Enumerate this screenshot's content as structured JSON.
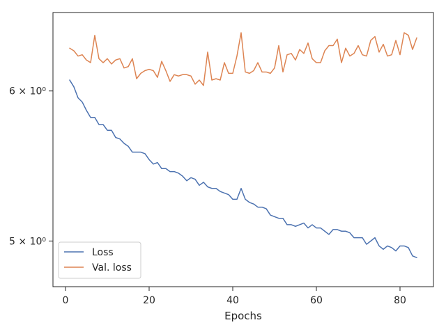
{
  "chart_data": {
    "type": "line",
    "xlabel": "Epochs",
    "ylabel": "",
    "yscale": "log",
    "xlim": [
      -3,
      88
    ],
    "ylim": [
      4.73,
      6.6
    ],
    "xticks": [
      0,
      20,
      40,
      60,
      80
    ],
    "yticks": [
      5.0,
      6.0
    ],
    "ytick_labels": [
      "5 × 10⁰",
      "6 × 10⁰"
    ],
    "legend_position": "lower-left",
    "grid": false,
    "colors": {
      "loss": "#4c72b0",
      "val_loss": "#dd8452",
      "axis": "#262626"
    },
    "x": [
      1,
      2,
      3,
      4,
      5,
      6,
      7,
      8,
      9,
      10,
      11,
      12,
      13,
      14,
      15,
      16,
      17,
      18,
      19,
      20,
      21,
      22,
      23,
      24,
      25,
      26,
      27,
      28,
      29,
      30,
      31,
      32,
      33,
      34,
      35,
      36,
      37,
      38,
      39,
      40,
      41,
      42,
      43,
      44,
      45,
      46,
      47,
      48,
      49,
      50,
      51,
      52,
      53,
      54,
      55,
      56,
      57,
      58,
      59,
      60,
      61,
      62,
      63,
      64,
      65,
      66,
      67,
      68,
      69,
      70,
      71,
      72,
      73,
      74,
      75,
      76,
      77,
      78,
      79,
      80,
      81,
      82,
      83,
      84
    ],
    "series": [
      {
        "name": "Loss",
        "color": "#4c72b0",
        "values": [
          6.08,
          6.03,
          5.95,
          5.92,
          5.86,
          5.81,
          5.81,
          5.76,
          5.76,
          5.72,
          5.72,
          5.67,
          5.66,
          5.63,
          5.61,
          5.57,
          5.57,
          5.57,
          5.56,
          5.52,
          5.49,
          5.5,
          5.46,
          5.46,
          5.44,
          5.44,
          5.43,
          5.41,
          5.38,
          5.4,
          5.39,
          5.35,
          5.37,
          5.34,
          5.33,
          5.33,
          5.31,
          5.3,
          5.29,
          5.26,
          5.26,
          5.33,
          5.26,
          5.24,
          5.23,
          5.21,
          5.21,
          5.2,
          5.16,
          5.15,
          5.14,
          5.14,
          5.1,
          5.1,
          5.09,
          5.1,
          5.11,
          5.08,
          5.1,
          5.08,
          5.08,
          5.06,
          5.04,
          5.07,
          5.07,
          5.06,
          5.06,
          5.05,
          5.02,
          5.02,
          5.02,
          4.98,
          5.0,
          5.02,
          4.97,
          4.95,
          4.97,
          4.96,
          4.94,
          4.97,
          4.97,
          4.96,
          4.91,
          4.9
        ]
      },
      {
        "name": "Val. loss",
        "color": "#dd8452",
        "values": [
          6.32,
          6.3,
          6.26,
          6.27,
          6.23,
          6.21,
          6.42,
          6.24,
          6.21,
          6.24,
          6.2,
          6.23,
          6.24,
          6.17,
          6.18,
          6.24,
          6.09,
          6.13,
          6.15,
          6.16,
          6.15,
          6.1,
          6.22,
          6.15,
          6.07,
          6.12,
          6.11,
          6.12,
          6.12,
          6.11,
          6.05,
          6.08,
          6.04,
          6.29,
          6.08,
          6.09,
          6.08,
          6.21,
          6.13,
          6.13,
          6.26,
          6.44,
          6.14,
          6.13,
          6.15,
          6.21,
          6.14,
          6.14,
          6.13,
          6.17,
          6.34,
          6.14,
          6.27,
          6.28,
          6.23,
          6.31,
          6.28,
          6.36,
          6.24,
          6.21,
          6.21,
          6.3,
          6.34,
          6.34,
          6.39,
          6.21,
          6.32,
          6.26,
          6.28,
          6.34,
          6.27,
          6.26,
          6.38,
          6.41,
          6.29,
          6.35,
          6.26,
          6.27,
          6.38,
          6.27,
          6.44,
          6.42,
          6.31,
          6.4
        ]
      }
    ]
  }
}
